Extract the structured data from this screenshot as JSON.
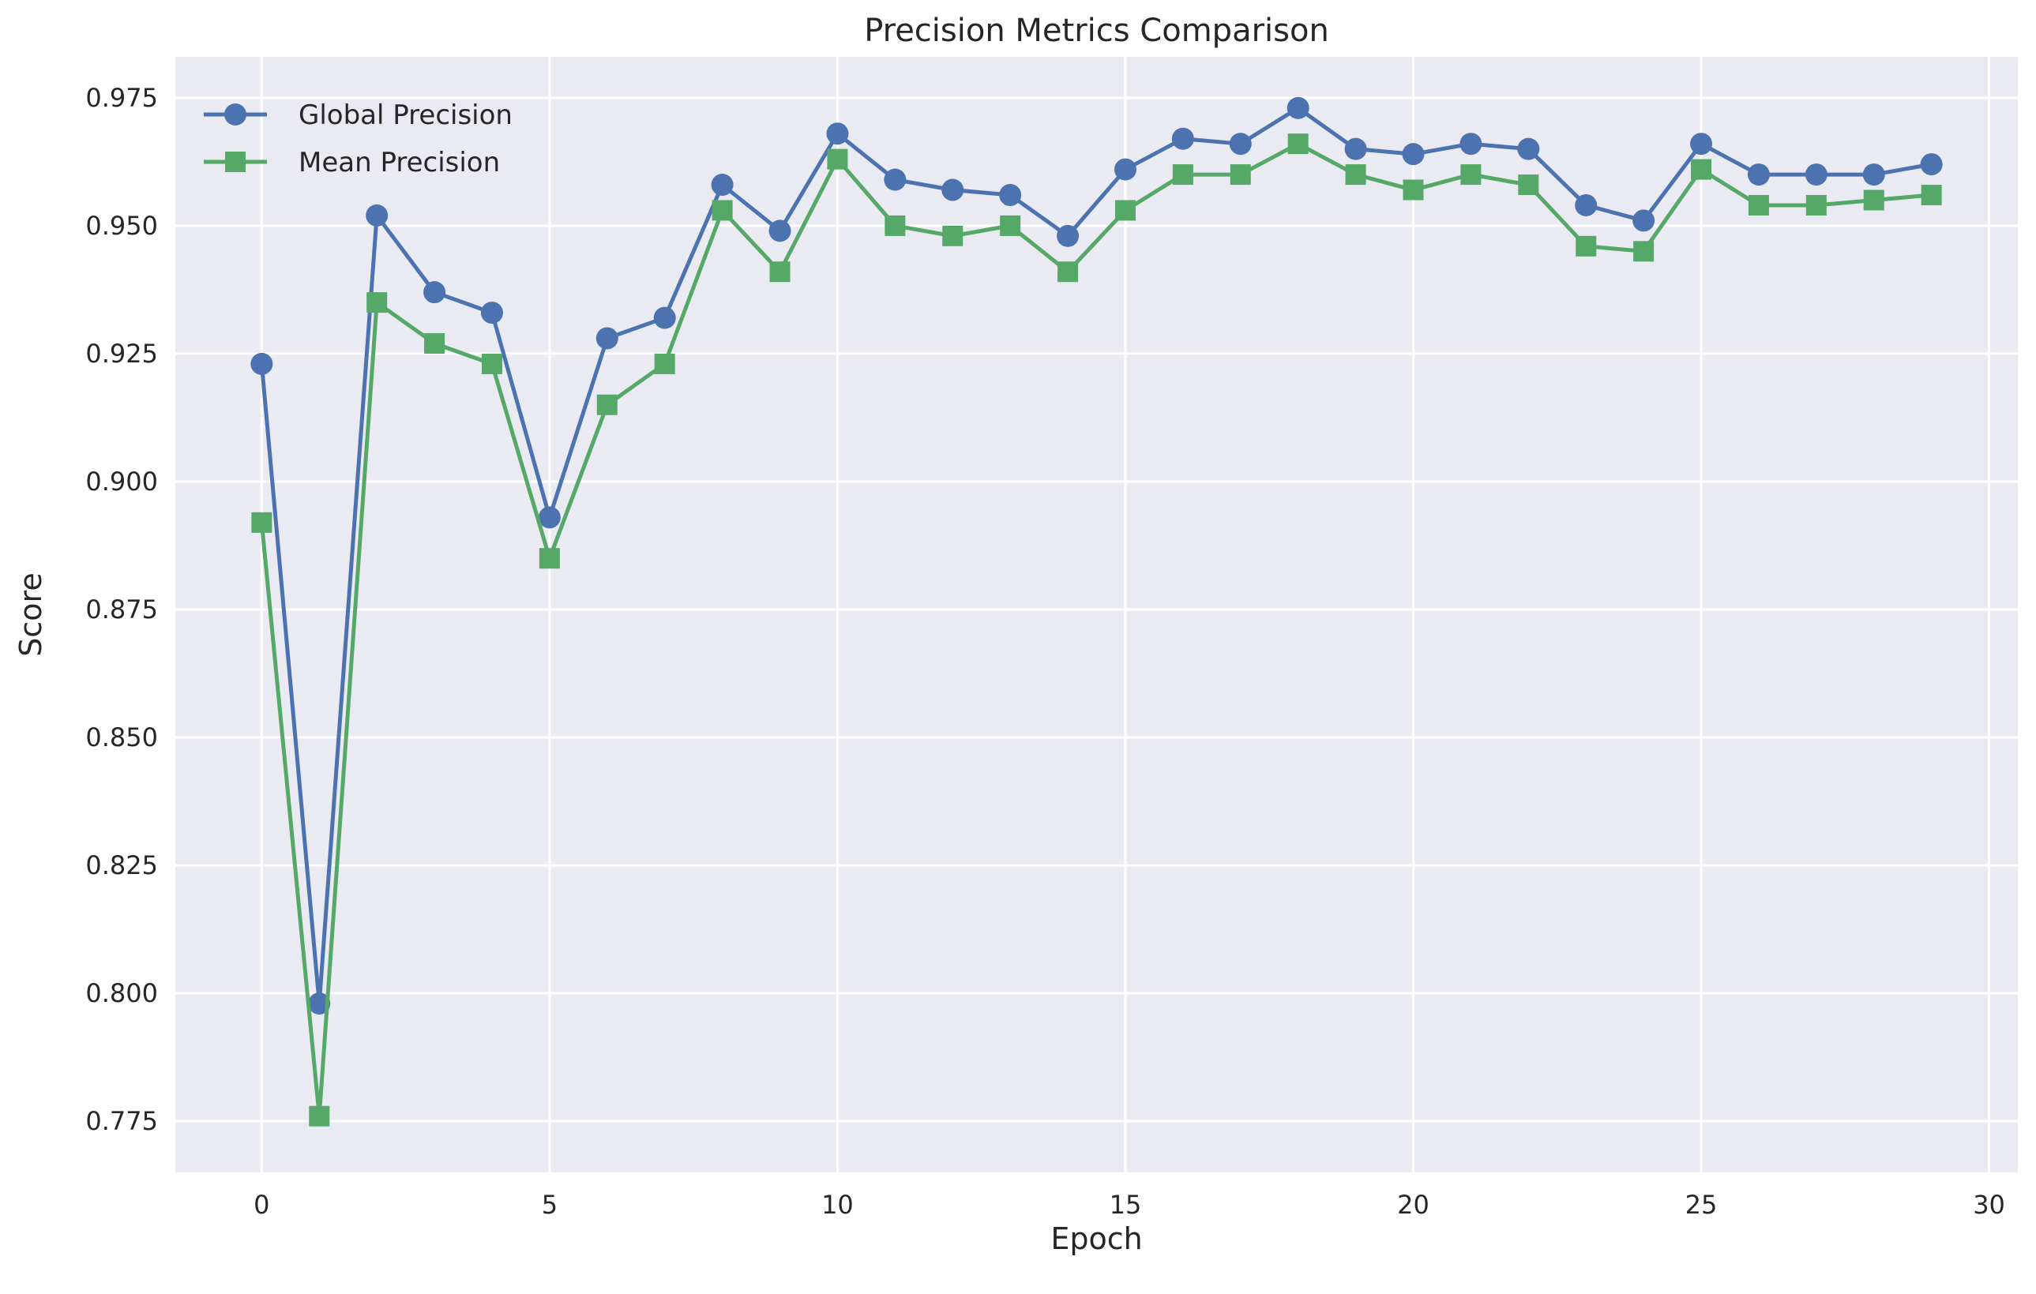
{
  "chart_data": {
    "type": "line",
    "title": "Precision Metrics Comparison",
    "xlabel": "Epoch",
    "ylabel": "Score",
    "xlim": [
      -1.5,
      30.5
    ],
    "ylim": [
      0.765,
      0.983
    ],
    "x_ticks": [
      0,
      5,
      10,
      15,
      20,
      25,
      30
    ],
    "y_ticks": [
      0.775,
      0.8,
      0.825,
      0.85,
      0.875,
      0.9,
      0.925,
      0.95,
      0.975
    ],
    "x_tick_labels": [
      "0",
      "5",
      "10",
      "15",
      "20",
      "25",
      "30"
    ],
    "y_tick_labels": [
      "0.775",
      "0.800",
      "0.825",
      "0.850",
      "0.875",
      "0.900",
      "0.925",
      "0.950",
      "0.975"
    ],
    "grid": true,
    "legend_position": "top-left",
    "x": [
      0,
      1,
      2,
      3,
      4,
      5,
      6,
      7,
      8,
      9,
      10,
      11,
      12,
      13,
      14,
      15,
      16,
      17,
      18,
      19,
      20,
      21,
      22,
      23,
      24,
      25,
      26,
      27,
      28,
      29
    ],
    "series": [
      {
        "name": "Global Precision",
        "color": "#4c72b0",
        "marker": "circle",
        "values": [
          0.923,
          0.798,
          0.952,
          0.937,
          0.933,
          0.893,
          0.928,
          0.932,
          0.958,
          0.949,
          0.968,
          0.959,
          0.957,
          0.956,
          0.948,
          0.961,
          0.967,
          0.966,
          0.973,
          0.965,
          0.964,
          0.966,
          0.965,
          0.954,
          0.951,
          0.966,
          0.96,
          0.96,
          0.96,
          0.962
        ]
      },
      {
        "name": "Mean Precision",
        "color": "#55a868",
        "marker": "square",
        "values": [
          0.892,
          0.776,
          0.935,
          0.927,
          0.923,
          0.885,
          0.915,
          0.923,
          0.953,
          0.941,
          0.963,
          0.95,
          0.948,
          0.95,
          0.941,
          0.953,
          0.96,
          0.96,
          0.966,
          0.96,
          0.957,
          0.96,
          0.958,
          0.946,
          0.945,
          0.961,
          0.954,
          0.954,
          0.955,
          0.956
        ]
      }
    ]
  }
}
